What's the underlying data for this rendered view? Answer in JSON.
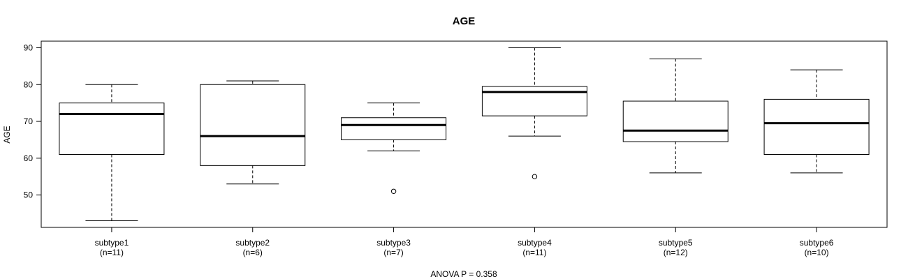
{
  "chart_data": {
    "type": "boxplot",
    "title": "AGE",
    "ylabel": "AGE",
    "xlabel": "ANOVA P = 0.358",
    "ylim": [
      41.2,
      91.8
    ],
    "yticks": [
      50,
      60,
      70,
      80,
      90
    ],
    "groups": [
      {
        "name": "subtype1",
        "n_label": "(n=11)",
        "whisker_low": 43,
        "q1": 61,
        "median": 72,
        "q3": 75,
        "whisker_high": 80,
        "outliers": []
      },
      {
        "name": "subtype2",
        "n_label": "(n=6)",
        "whisker_low": 53,
        "q1": 58,
        "median": 66,
        "q3": 80,
        "whisker_high": 81,
        "outliers": []
      },
      {
        "name": "subtype3",
        "n_label": "(n=7)",
        "whisker_low": 62,
        "q1": 65,
        "median": 69,
        "q3": 71,
        "whisker_high": 75,
        "outliers": [
          51
        ]
      },
      {
        "name": "subtype4",
        "n_label": "(n=11)",
        "whisker_low": 66,
        "q1": 71.5,
        "median": 78,
        "q3": 79.5,
        "whisker_high": 90,
        "outliers": [
          55
        ]
      },
      {
        "name": "subtype5",
        "n_label": "(n=12)",
        "whisker_low": 56,
        "q1": 64.5,
        "median": 67.5,
        "q3": 75.5,
        "whisker_high": 87,
        "outliers": []
      },
      {
        "name": "subtype6",
        "n_label": "(n=10)",
        "whisker_low": 56,
        "q1": 61,
        "median": 69.5,
        "q3": 76,
        "whisker_high": 84,
        "outliers": []
      }
    ]
  }
}
